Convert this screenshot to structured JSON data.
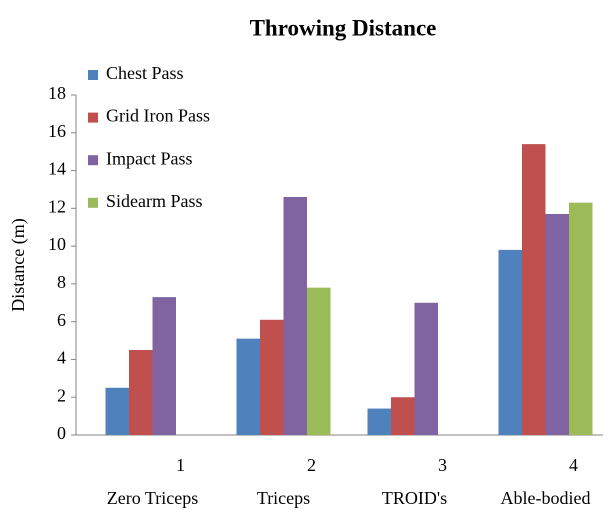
{
  "chart_data": {
    "type": "bar",
    "title": "Throwing Distance",
    "y_label": "Distance (m)",
    "categories": [
      "1",
      "2",
      "3",
      "4"
    ],
    "category_groups": [
      "Zero Triceps",
      "Triceps",
      "TROID's",
      "Able-bodied"
    ],
    "series": [
      {
        "name": "Chest Pass",
        "color": "#4f81bd",
        "values": [
          2.5,
          5.1,
          1.4,
          9.8
        ]
      },
      {
        "name": "Grid Iron Pass",
        "color": "#c0504d",
        "values": [
          4.5,
          6.1,
          2.0,
          15.4
        ]
      },
      {
        "name": "Impact Pass",
        "color": "#8064a2",
        "values": [
          7.3,
          12.6,
          7.0,
          11.7
        ]
      },
      {
        "name": "Sidearm Pass",
        "color": "#9bbb59",
        "values": [
          null,
          7.8,
          null,
          12.3
        ]
      }
    ],
    "ylim": [
      0,
      18
    ],
    "yticks": [
      0,
      2,
      4,
      6,
      8,
      10,
      12,
      14,
      16,
      18
    ],
    "legend": "upper left"
  }
}
